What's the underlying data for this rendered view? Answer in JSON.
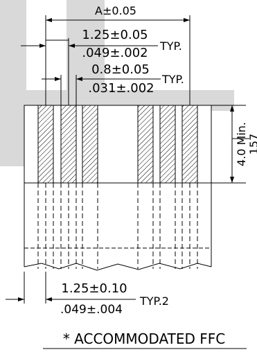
{
  "drawing": {
    "overall_width_label": "A±0.05",
    "pitch": {
      "metric": "1.25±0.05",
      "imperial": ".049±.002",
      "note": "TYP."
    },
    "conductor_width": {
      "metric": "0.8±0.05",
      "imperial": ".031±.002",
      "note": "TYP."
    },
    "exposed_length": {
      "metric": "4.0  Min.",
      "imperial": "157"
    },
    "bottom_pitch": {
      "metric": "1.25±0.10",
      "imperial": ".049±.004",
      "note": "TYP.2"
    },
    "caption": "*  ACCOMMODATED  FFC",
    "colors": {
      "line": "#000000",
      "watermark": "#d9d9d9",
      "background": "#ffffff"
    }
  }
}
